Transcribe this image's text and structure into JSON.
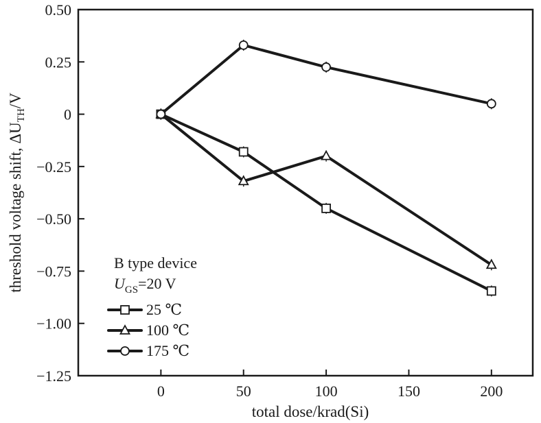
{
  "chart_data": {
    "type": "line",
    "title": "",
    "xlabel": "total dose/krad(Si)",
    "ylabel_prefix": "threshold voltage shift, ΔU",
    "ylabel_sub": "TH",
    "ylabel_suffix": "/V",
    "xlim": [
      -50,
      225
    ],
    "ylim": [
      -1.25,
      0.5
    ],
    "x_ticks": [
      0,
      50,
      100,
      150,
      200
    ],
    "y_ticks": [
      0.5,
      0.25,
      0,
      -0.25,
      -0.5,
      -0.75,
      -1.0,
      -1.25
    ],
    "x_tick_labels": [
      "0",
      "50",
      "100",
      "150",
      "200"
    ],
    "y_tick_labels": [
      "0.50",
      "0.25",
      "0",
      "−0.25",
      "−0.50",
      "−0.75",
      "−1.00",
      "−1.25"
    ],
    "grid": false,
    "legend": {
      "placement": "bottom-left",
      "title_line1": "B type device",
      "title_line2_main": "U",
      "title_line2_sub": "GS",
      "title_line2_rest": "=20 V"
    },
    "series": [
      {
        "name": "25 ℃",
        "marker": "square",
        "x": [
          0,
          50,
          100,
          200
        ],
        "y": [
          0,
          -0.18,
          -0.45,
          -0.845
        ]
      },
      {
        "name": "100 ℃",
        "marker": "triangle",
        "x": [
          0,
          50,
          100,
          200
        ],
        "y": [
          0,
          -0.32,
          -0.2,
          -0.72
        ]
      },
      {
        "name": "175 ℃",
        "marker": "circle",
        "x": [
          0,
          50,
          100,
          200
        ],
        "y": [
          0,
          0.33,
          0.225,
          0.05
        ]
      }
    ]
  }
}
